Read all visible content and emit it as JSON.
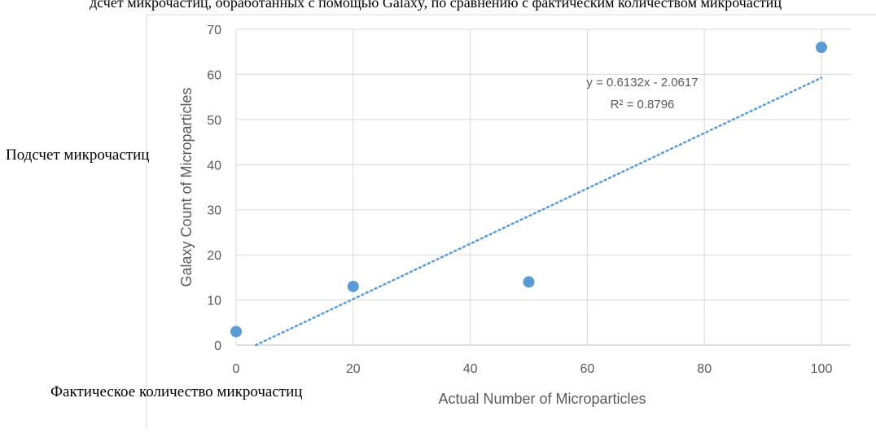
{
  "header_fragment": "дсчет микрочастиц, обработанных с помощью Galaxy, по сравнению с фактическим количеством микрочастиц",
  "translated_y_label": "Подсчет микрочастиц",
  "translated_x_label": "Фактическое количество микрочастиц",
  "chart_data": {
    "type": "scatter",
    "title": "",
    "xlabel": "Actual Number of Microparticles",
    "ylabel": "Galaxy Count of Microparticles",
    "xlim": [
      0,
      100
    ],
    "ylim": [
      0,
      70
    ],
    "xticks": [
      "0",
      "20",
      "40",
      "60",
      "80",
      "100"
    ],
    "yticks": [
      "0",
      "10",
      "20",
      "30",
      "40",
      "50",
      "60",
      "70"
    ],
    "grid": true,
    "point_color": "#5b9bd5",
    "trendline_color": "#5b9bd5",
    "points": [
      {
        "x": 0,
        "y": 3
      },
      {
        "x": 20,
        "y": 13
      },
      {
        "x": 50,
        "y": 14
      },
      {
        "x": 100,
        "y": 66
      }
    ],
    "trendline": {
      "type": "linear",
      "slope": 0.6132,
      "intercept": -2.0617,
      "equation": "y = 0.6132x - 2.0617",
      "r_squared": "R² = 0.8796"
    }
  }
}
